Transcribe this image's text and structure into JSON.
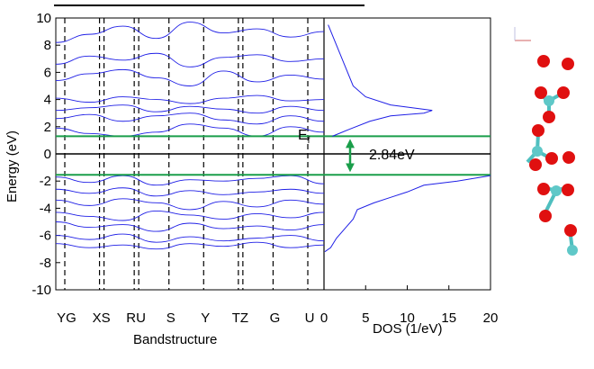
{
  "chart_data": [
    {
      "type": "line",
      "title": "",
      "xlabel": "Bandstructure",
      "ylabel": "Energy (eV)",
      "ylim": [
        -10,
        10
      ],
      "yticks": [
        "10",
        "8",
        "6",
        "4",
        "2",
        "0",
        "-2",
        "-4",
        "-6",
        "-8",
        "-10"
      ],
      "kpoints": [
        "YG",
        "XS",
        "RU",
        "S",
        "Y",
        "TZ",
        "G",
        "U"
      ],
      "grid": false,
      "fermi_label": "E",
      "fermi_subscript": "f",
      "fermi_level": 0,
      "cbm": 1.3,
      "vbm": -1.54,
      "gap_label": "2.84eV",
      "band_color": "#1f1fe6",
      "edge_color": "#1a9e4a",
      "arrow_color": "#1a9e4a",
      "series": [
        {
          "values": [
            1.9,
            1.5,
            1.3,
            1.6,
            2.2,
            1.9,
            1.3,
            2.0,
            1.6
          ]
        },
        {
          "values": [
            2.6,
            2.9,
            2.4,
            2.8,
            3.0,
            2.5,
            2.2,
            2.8,
            2.4
          ]
        },
        {
          "values": [
            3.2,
            3.4,
            3.6,
            3.1,
            3.5,
            3.3,
            3.0,
            3.5,
            3.2
          ]
        },
        {
          "values": [
            4.1,
            3.8,
            4.2,
            4.0,
            3.7,
            4.1,
            4.3,
            3.9,
            4.0
          ]
        },
        {
          "values": [
            5.4,
            5.9,
            6.2,
            5.6,
            5.0,
            6.1,
            5.3,
            5.8,
            5.5
          ]
        },
        {
          "values": [
            6.6,
            7.2,
            6.9,
            7.4,
            6.4,
            7.1,
            7.3,
            6.8,
            7.0
          ]
        },
        {
          "values": [
            8.2,
            8.8,
            9.4,
            8.5,
            9.7,
            8.9,
            9.2,
            8.6,
            9.0
          ]
        },
        {
          "values": [
            -1.7,
            -2.1,
            -1.6,
            -2.3,
            -1.9,
            -2.0,
            -1.8,
            -1.6,
            -2.2
          ]
        },
        {
          "values": [
            -2.6,
            -2.9,
            -2.5,
            -3.1,
            -2.7,
            -3.0,
            -2.8,
            -2.6,
            -2.9
          ]
        },
        {
          "values": [
            -3.4,
            -3.8,
            -3.3,
            -3.6,
            -4.1,
            -3.5,
            -3.9,
            -3.4,
            -3.7
          ]
        },
        {
          "values": [
            -4.3,
            -4.6,
            -4.9,
            -4.2,
            -4.5,
            -4.8,
            -4.4,
            -4.7,
            -4.3
          ]
        },
        {
          "values": [
            -5.0,
            -5.4,
            -5.2,
            -5.7,
            -5.1,
            -5.5,
            -5.3,
            -5.6,
            -5.2
          ]
        },
        {
          "values": [
            -6.0,
            -6.3,
            -5.9,
            -6.5,
            -6.1,
            -6.4,
            -6.2,
            -6.0,
            -6.4
          ]
        },
        {
          "values": [
            -6.6,
            -6.9,
            -6.7,
            -7.0,
            -6.6,
            -6.8,
            -6.5,
            -6.9,
            -6.7
          ]
        }
      ]
    },
    {
      "type": "line",
      "title": "",
      "xlabel": "DOS (1/eV)",
      "ylabel": "",
      "xlim": [
        0,
        20
      ],
      "xticks": [
        "0",
        "5",
        "10",
        "15",
        "20"
      ],
      "ylim": [
        -10,
        10
      ],
      "grid": false,
      "series": [
        {
          "x": [
            0.1,
            0.8,
            1.5,
            2.5,
            3.5,
            4.0,
            6.0,
            8.0,
            10.0,
            12.0,
            16.0,
            20.0
          ],
          "y": [
            -7.2,
            -6.9,
            -6.2,
            -5.5,
            -4.8,
            -4.1,
            -3.6,
            -3.2,
            -2.8,
            -2.3,
            -2.0,
            -1.6
          ]
        },
        {
          "x": [
            1.0,
            3.0,
            5.5,
            8.0,
            12.0,
            13.0,
            8.0,
            5.0,
            3.5,
            2.5,
            1.5,
            0.5
          ],
          "y": [
            1.3,
            1.8,
            2.4,
            2.8,
            3.0,
            3.2,
            3.6,
            4.2,
            5.0,
            6.5,
            8.0,
            9.5
          ]
        }
      ]
    }
  ]
}
